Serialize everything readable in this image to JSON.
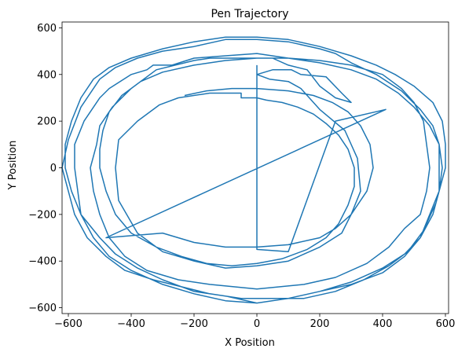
{
  "chart_data": {
    "type": "line",
    "title": "Pen Trajectory",
    "xlabel": "X Position",
    "ylabel": "Y Position",
    "xlim": [
      -620,
      610
    ],
    "ylim": [
      -625,
      625
    ],
    "xticks": [
      -600,
      -400,
      -200,
      0,
      200,
      400,
      600
    ],
    "yticks": [
      -600,
      -400,
      -200,
      0,
      200,
      400,
      600
    ],
    "grid": false,
    "legend": "none",
    "series": [
      {
        "color": "#1f77b4",
        "points": [
          [
            0,
            440
          ],
          [
            0,
            300
          ],
          [
            -50,
            300
          ],
          [
            -50,
            320
          ],
          [
            -150,
            320
          ],
          [
            -250,
            300
          ],
          [
            -310,
            270
          ],
          [
            -380,
            200
          ],
          [
            -440,
            120
          ],
          [
            -450,
            0
          ],
          [
            -440,
            -140
          ],
          [
            -380,
            -280
          ],
          [
            -300,
            -360
          ],
          [
            -200,
            -400
          ],
          [
            -100,
            -430
          ],
          [
            0,
            -420
          ],
          [
            100,
            -400
          ],
          [
            200,
            -340
          ],
          [
            270,
            -280
          ],
          [
            300,
            -200
          ],
          [
            330,
            -100
          ],
          [
            320,
            40
          ],
          [
            280,
            160
          ],
          [
            200,
            250
          ],
          [
            140,
            340
          ],
          [
            100,
            370
          ],
          [
            40,
            380
          ],
          [
            0,
            400
          ],
          [
            50,
            420
          ],
          [
            110,
            420
          ],
          [
            140,
            400
          ],
          [
            220,
            390
          ],
          [
            270,
            320
          ],
          [
            300,
            280
          ],
          [
            250,
            300
          ],
          [
            200,
            350
          ],
          [
            160,
            420
          ],
          [
            100,
            440
          ],
          [
            50,
            470
          ],
          [
            -150,
            470
          ],
          [
            -200,
            460
          ],
          [
            -320,
            420
          ],
          [
            -400,
            340
          ],
          [
            -460,
            260
          ],
          [
            -500,
            180
          ],
          [
            -510,
            100
          ],
          [
            -530,
            0
          ],
          [
            -520,
            -100
          ],
          [
            -500,
            -200
          ],
          [
            -470,
            -300
          ],
          [
            -420,
            -380
          ],
          [
            -350,
            -440
          ],
          [
            -250,
            -480
          ],
          [
            -150,
            -500
          ],
          [
            0,
            -520
          ],
          [
            150,
            -500
          ],
          [
            250,
            -470
          ],
          [
            350,
            -410
          ],
          [
            420,
            -340
          ],
          [
            470,
            -260
          ],
          [
            520,
            -200
          ],
          [
            540,
            -100
          ],
          [
            550,
            0
          ],
          [
            540,
            100
          ],
          [
            530,
            200
          ],
          [
            500,
            280
          ],
          [
            460,
            340
          ],
          [
            400,
            400
          ],
          [
            300,
            440
          ],
          [
            200,
            460
          ],
          [
            100,
            470
          ],
          [
            0,
            490
          ],
          [
            -100,
            480
          ],
          [
            -200,
            470
          ],
          [
            -270,
            440
          ],
          [
            -330,
            440
          ],
          [
            -350,
            420
          ],
          [
            -400,
            400
          ],
          [
            -470,
            340
          ],
          [
            -500,
            300
          ],
          [
            -550,
            200
          ],
          [
            -580,
            100
          ],
          [
            -580,
            0
          ],
          [
            -560,
            -200
          ],
          [
            -500,
            -300
          ],
          [
            -450,
            -370
          ],
          [
            -380,
            -430
          ],
          [
            -300,
            -480
          ],
          [
            -200,
            -530
          ],
          [
            -100,
            -550
          ],
          [
            0,
            -580
          ],
          [
            100,
            -560
          ],
          [
            200,
            -530
          ],
          [
            300,
            -500
          ],
          [
            400,
            -450
          ],
          [
            470,
            -380
          ],
          [
            520,
            -300
          ],
          [
            550,
            -200
          ],
          [
            580,
            -100
          ],
          [
            580,
            100
          ],
          [
            560,
            180
          ],
          [
            520,
            250
          ],
          [
            460,
            330
          ],
          [
            380,
            400
          ],
          [
            300,
            450
          ],
          [
            250,
            490
          ],
          [
            200,
            510
          ],
          [
            100,
            540
          ],
          [
            0,
            550
          ],
          [
            -100,
            550
          ],
          [
            -200,
            520
          ],
          [
            -300,
            500
          ],
          [
            -380,
            470
          ],
          [
            -450,
            430
          ],
          [
            -500,
            380
          ],
          [
            -560,
            260
          ],
          [
            -600,
            120
          ],
          [
            -620,
            0
          ],
          [
            -600,
            -100
          ],
          [
            -580,
            -200
          ],
          [
            -540,
            -300
          ],
          [
            -480,
            -380
          ],
          [
            -420,
            -440
          ],
          [
            -330,
            -480
          ],
          [
            -240,
            -510
          ],
          [
            -150,
            -540
          ],
          [
            -50,
            -560
          ],
          [
            50,
            -560
          ],
          [
            150,
            -560
          ],
          [
            250,
            -530
          ],
          [
            340,
            -480
          ],
          [
            420,
            -420
          ],
          [
            480,
            -360
          ],
          [
            530,
            -270
          ],
          [
            570,
            -150
          ],
          [
            600,
            0
          ],
          [
            600,
            100
          ],
          [
            590,
            200
          ],
          [
            560,
            280
          ],
          [
            500,
            350
          ],
          [
            440,
            400
          ],
          [
            380,
            440
          ],
          [
            300,
            480
          ],
          [
            200,
            520
          ],
          [
            100,
            550
          ],
          [
            0,
            560
          ],
          [
            -100,
            560
          ],
          [
            -200,
            540
          ],
          [
            -300,
            510
          ],
          [
            -400,
            470
          ],
          [
            -470,
            430
          ],
          [
            -520,
            380
          ],
          [
            -560,
            300
          ],
          [
            -590,
            200
          ],
          [
            -610,
            100
          ],
          [
            -610,
            0
          ],
          [
            -590,
            -100
          ],
          [
            -560,
            -200
          ],
          [
            -520,
            -300
          ],
          [
            -470,
            -380
          ],
          [
            -400,
            -440
          ],
          [
            -300,
            -500
          ],
          [
            -200,
            -540
          ],
          [
            -100,
            -570
          ],
          [
            0,
            -580
          ],
          [
            100,
            -560
          ],
          [
            200,
            -530
          ],
          [
            300,
            -490
          ],
          [
            400,
            -430
          ],
          [
            470,
            -370
          ],
          [
            520,
            -300
          ],
          [
            560,
            -200
          ],
          [
            580,
            -100
          ],
          [
            590,
            0
          ],
          [
            580,
            100
          ],
          [
            550,
            180
          ],
          [
            500,
            260
          ],
          [
            450,
            320
          ],
          [
            380,
            380
          ],
          [
            300,
            420
          ],
          [
            200,
            450
          ],
          [
            100,
            470
          ],
          [
            0,
            470
          ],
          [
            -100,
            460
          ],
          [
            -200,
            440
          ],
          [
            -300,
            410
          ],
          [
            -370,
            370
          ],
          [
            -430,
            310
          ],
          [
            -470,
            240
          ],
          [
            -490,
            160
          ],
          [
            -500,
            80
          ],
          [
            -500,
            0
          ],
          [
            -480,
            -100
          ],
          [
            -450,
            -200
          ],
          [
            -400,
            -280
          ],
          [
            -320,
            -340
          ],
          [
            -240,
            -380
          ],
          [
            -160,
            -410
          ],
          [
            -80,
            -420
          ],
          [
            0,
            -410
          ],
          [
            80,
            -390
          ],
          [
            160,
            -350
          ],
          [
            220,
            -300
          ],
          [
            260,
            -240
          ],
          [
            290,
            -160
          ],
          [
            310,
            -80
          ],
          [
            310,
            0
          ],
          [
            290,
            80
          ],
          [
            260,
            140
          ],
          [
            220,
            190
          ],
          [
            180,
            230
          ],
          [
            130,
            260
          ],
          [
            80,
            280
          ],
          [
            30,
            290
          ],
          [
            0,
            300
          ],
          [
            0,
            -350
          ],
          [
            100,
            -360
          ],
          [
            250,
            200
          ],
          [
            410,
            250
          ],
          [
            -480,
            -300
          ],
          [
            -300,
            -280
          ],
          [
            -200,
            -320
          ],
          [
            -100,
            -340
          ],
          [
            0,
            -340
          ],
          [
            100,
            -330
          ],
          [
            200,
            -300
          ],
          [
            250,
            -260
          ],
          [
            300,
            -200
          ],
          [
            350,
            -100
          ],
          [
            370,
            0
          ],
          [
            360,
            100
          ],
          [
            330,
            180
          ],
          [
            290,
            240
          ],
          [
            240,
            280
          ],
          [
            180,
            310
          ],
          [
            100,
            330
          ],
          [
            0,
            340
          ],
          [
            -80,
            340
          ],
          [
            -160,
            330
          ],
          [
            -230,
            310
          ]
        ]
      }
    ]
  }
}
